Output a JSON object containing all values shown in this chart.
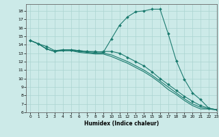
{
  "xlabel": "Humidex (Indice chaleur)",
  "bg_color": "#cceae8",
  "line_color": "#1a7a6e",
  "grid_color": "#aad4d0",
  "xlim": [
    -0.5,
    23
  ],
  "ylim": [
    6,
    18.8
  ],
  "yticks": [
    6,
    7,
    8,
    9,
    10,
    11,
    12,
    13,
    14,
    15,
    16,
    17,
    18
  ],
  "xticks": [
    0,
    1,
    2,
    3,
    4,
    5,
    6,
    7,
    8,
    9,
    10,
    11,
    12,
    13,
    14,
    15,
    16,
    17,
    18,
    19,
    20,
    21,
    22,
    23
  ],
  "series": [
    {
      "x": [
        0,
        1,
        2,
        3,
        4,
        5,
        6,
        7,
        8,
        9,
        10,
        11,
        12,
        13,
        14,
        15,
        16,
        17,
        18,
        19,
        20,
        21,
        22,
        23
      ],
      "y": [
        14.5,
        14.1,
        13.8,
        13.3,
        13.4,
        13.4,
        13.3,
        13.2,
        13.2,
        13.1,
        14.7,
        16.3,
        17.3,
        17.9,
        18.0,
        18.2,
        18.2,
        15.3,
        12.1,
        9.9,
        8.3,
        7.5,
        6.5,
        6.3
      ],
      "has_markers": true
    },
    {
      "x": [
        0,
        1,
        2,
        3,
        4,
        5,
        6,
        7,
        8,
        9,
        10,
        11,
        12,
        13,
        14,
        15,
        16,
        17,
        18,
        19,
        20,
        21,
        22,
        23
      ],
      "y": [
        14.5,
        14.1,
        13.5,
        13.2,
        13.4,
        13.4,
        13.3,
        13.2,
        13.1,
        13.2,
        13.2,
        13.0,
        12.5,
        12.0,
        11.5,
        10.8,
        10.0,
        9.3,
        8.6,
        7.9,
        7.3,
        6.8,
        6.5,
        6.3
      ],
      "has_markers": true
    },
    {
      "x": [
        0,
        1,
        2,
        3,
        4,
        5,
        6,
        7,
        8,
        9,
        10,
        11,
        12,
        13,
        14,
        15,
        16,
        17,
        18,
        19,
        20,
        21,
        22,
        23
      ],
      "y": [
        14.5,
        14.1,
        13.5,
        13.2,
        13.3,
        13.3,
        13.2,
        13.1,
        13.0,
        13.0,
        12.8,
        12.4,
        12.0,
        11.5,
        11.0,
        10.4,
        9.7,
        9.0,
        8.3,
        7.6,
        7.0,
        6.6,
        6.4,
        6.3
      ],
      "has_markers": false
    },
    {
      "x": [
        0,
        1,
        2,
        3,
        4,
        5,
        6,
        7,
        8,
        9,
        10,
        11,
        12,
        13,
        14,
        15,
        16,
        17,
        18,
        19,
        20,
        21,
        22,
        23
      ],
      "y": [
        14.5,
        14.1,
        13.5,
        13.2,
        13.3,
        13.3,
        13.1,
        13.0,
        12.9,
        12.9,
        12.6,
        12.2,
        11.8,
        11.3,
        10.8,
        10.2,
        9.5,
        8.7,
        8.1,
        7.4,
        6.8,
        6.4,
        6.4,
        6.3
      ],
      "has_markers": false
    }
  ]
}
